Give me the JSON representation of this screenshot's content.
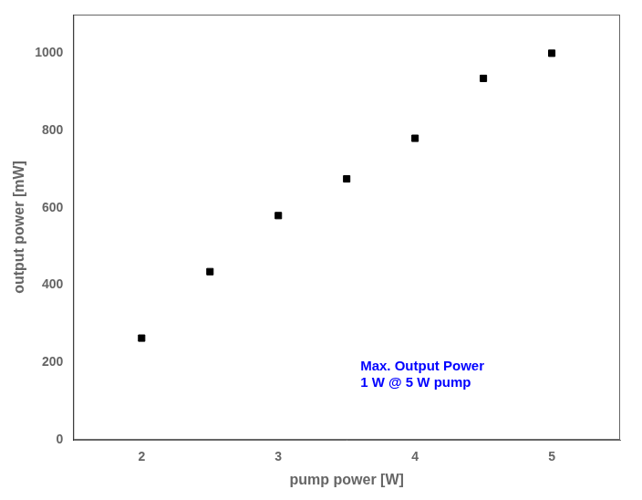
{
  "chart_data": {
    "type": "scatter",
    "x": [
      2.0,
      2.5,
      3.0,
      3.5,
      4.0,
      4.5,
      5.0
    ],
    "values": [
      263,
      435,
      580,
      675,
      780,
      935,
      1000
    ],
    "xlabel": "pump power [W]",
    "ylabel": "output power [mW]",
    "xlim": [
      1.5,
      5.5
    ],
    "ylim": [
      0,
      1100
    ],
    "xticks": [
      2,
      3,
      4,
      5
    ],
    "yticks": [
      0,
      200,
      400,
      600,
      800,
      1000
    ],
    "color": "black",
    "marker": "square",
    "grid": false,
    "annotations": [
      {
        "text": "Max. Output Power\n1 W @ 5 W pump",
        "x": 3.6,
        "y": 130,
        "color": "#0000FF"
      }
    ]
  }
}
